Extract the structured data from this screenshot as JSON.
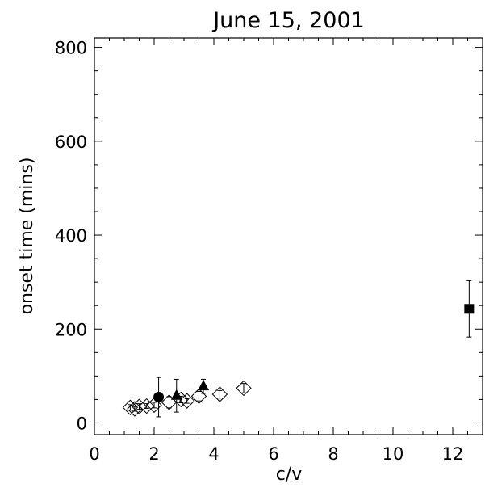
{
  "chart_data": {
    "type": "scatter",
    "title": "June 15, 2001",
    "xlabel": "c/v",
    "ylabel": "onset time (mins)",
    "xlim": [
      0,
      13
    ],
    "ylim": [
      -25,
      820
    ],
    "xticks": [
      0,
      2,
      4,
      6,
      8,
      10,
      12
    ],
    "yticks": [
      0,
      200,
      400,
      600,
      800
    ],
    "grid": false,
    "series": [
      {
        "marker": "diamond-open",
        "points": [
          {
            "x": 1.2,
            "y": 33,
            "err": 6
          },
          {
            "x": 1.35,
            "y": 30,
            "err": 5
          },
          {
            "x": 1.5,
            "y": 35,
            "err": 6
          },
          {
            "x": 1.75,
            "y": 36,
            "err": 5
          },
          {
            "x": 2.0,
            "y": 38,
            "err": 6
          },
          {
            "x": 2.5,
            "y": 44,
            "err": 12
          },
          {
            "x": 2.9,
            "y": 50,
            "err": 7
          },
          {
            "x": 3.1,
            "y": 47,
            "err": 5
          },
          {
            "x": 3.5,
            "y": 57,
            "err": 10
          },
          {
            "x": 4.2,
            "y": 61,
            "err": 8
          },
          {
            "x": 5.0,
            "y": 74,
            "err": 10
          }
        ]
      },
      {
        "marker": "circle-filled",
        "points": [
          {
            "x": 2.15,
            "y": 55,
            "err": 42
          }
        ]
      },
      {
        "marker": "triangle-filled",
        "points": [
          {
            "x": 2.75,
            "y": 58,
            "err": 35
          },
          {
            "x": 3.65,
            "y": 78,
            "err": 15
          }
        ]
      },
      {
        "marker": "square-filled",
        "points": [
          {
            "x": 12.55,
            "y": 243,
            "err": 60
          }
        ]
      }
    ]
  }
}
